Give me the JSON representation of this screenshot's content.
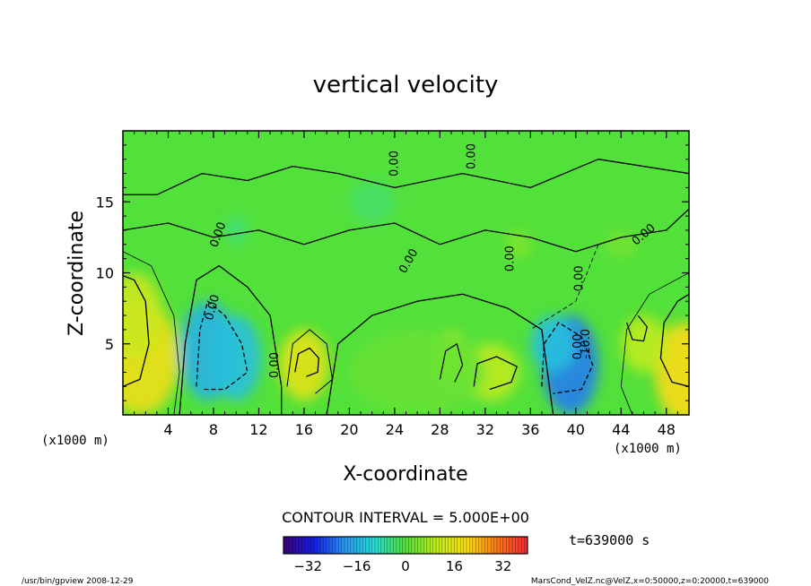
{
  "chart_data": {
    "type": "heatmap",
    "title": "vertical velocity",
    "xlabel": "X-coordinate",
    "ylabel": "Z-coordinate",
    "x_unit_left": "(x1000 m)",
    "x_unit_right": "(x1000 m)",
    "xlim": [
      0,
      50
    ],
    "ylim": [
      0,
      20
    ],
    "x_ticks": [
      4,
      8,
      12,
      16,
      20,
      24,
      28,
      32,
      36,
      40,
      44,
      48
    ],
    "x_tick_labels": [
      "4",
      "8",
      "12",
      "16",
      "20",
      "24",
      "28",
      "32",
      "36",
      "40",
      "44",
      "48"
    ],
    "y_ticks": [
      5,
      10,
      15
    ],
    "y_tick_labels": [
      "5",
      "10",
      "15"
    ],
    "contour_interval_text": "CONTOUR INTERVAL = 5.000E+00",
    "time_text": "t=639000 s",
    "colorbar": {
      "range": [
        -40,
        40
      ],
      "ticks": [
        -32,
        -16,
        0,
        16,
        32
      ],
      "tick_labels": [
        "−32",
        "−16",
        "0",
        "16",
        "32"
      ]
    },
    "contour_labels": [
      "0.00",
      "0.00",
      "0.00",
      "0.00",
      "0.00",
      "0.00",
      "0.00",
      "0.00",
      "0.00",
      "-10.0",
      "0.00"
    ],
    "footer_left": "/usr/bin/gpview  2008-12-29",
    "footer_right": "MarsCond_VelZ.nc@VelZ,x=0:50000,z=0:20000,t=639000"
  }
}
